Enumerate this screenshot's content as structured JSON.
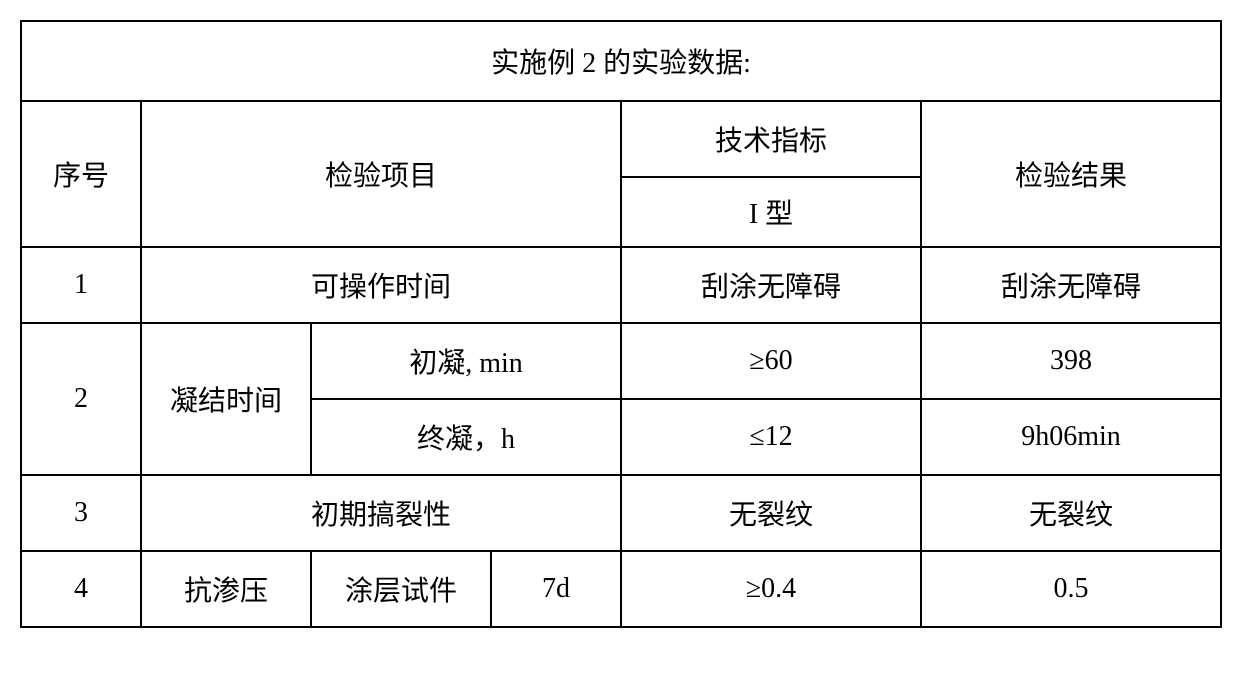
{
  "table": {
    "title": "实施例 2 的实验数据:",
    "header": {
      "seq": "序号",
      "item": "检验项目",
      "tech": "技术指标",
      "tech_sub": "I 型",
      "result": "检验结果"
    },
    "rows": {
      "r1": {
        "seq": "1",
        "item": "可操作时间",
        "tech": "刮涂无障碍",
        "result": "刮涂无障碍"
      },
      "r2": {
        "seq": "2",
        "item": "凝结时间",
        "sub1_label": "初凝, min",
        "sub1_tech": "≥60",
        "sub1_result": "398",
        "sub2_label": "终凝，h",
        "sub2_tech": "≤12",
        "sub2_result": "9h06min"
      },
      "r3": {
        "seq": "3",
        "item": "初期搞裂性",
        "tech": "无裂纹",
        "result": "无裂纹"
      },
      "r4": {
        "seq": "4",
        "item1": "抗渗压",
        "item2": "涂层试件",
        "item3": "7d",
        "tech": "≥0.4",
        "result": "0.5"
      }
    }
  }
}
